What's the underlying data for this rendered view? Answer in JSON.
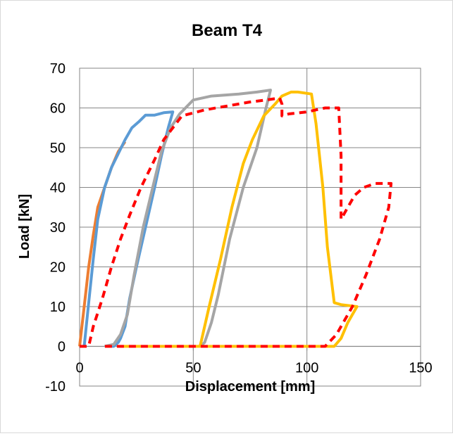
{
  "chart_data": {
    "type": "line",
    "title": "Beam T4",
    "xlabel": "Displacement [mm]",
    "ylabel": "Load [kN]",
    "xlim": [
      0,
      150
    ],
    "ylim": [
      -10,
      70
    ],
    "xticks": [
      "0",
      "50",
      "100",
      "150"
    ],
    "yticks": [
      "-10",
      "0",
      "10",
      "20",
      "30",
      "40",
      "50",
      "60",
      "70"
    ],
    "grid": true,
    "legend": "none",
    "series": [
      {
        "color": "#ED7D31",
        "dash": "solid",
        "points": [
          [
            0,
            0
          ],
          [
            2,
            10
          ],
          [
            4,
            20
          ],
          [
            6,
            28
          ],
          [
            8,
            35
          ],
          [
            11,
            40
          ],
          [
            14,
            45
          ],
          [
            17,
            49
          ],
          [
            20,
            51.5
          ]
        ]
      },
      {
        "color": "#5B9BD5",
        "dash": "solid",
        "points": [
          [
            0,
            0
          ],
          [
            2,
            0
          ],
          [
            4,
            11
          ],
          [
            6,
            22
          ],
          [
            8,
            32
          ],
          [
            11,
            40
          ],
          [
            14,
            45
          ],
          [
            17,
            48.5
          ],
          [
            20,
            52
          ],
          [
            23,
            55
          ],
          [
            26,
            56.5
          ],
          [
            29,
            58.2
          ],
          [
            33,
            58.2
          ],
          [
            37,
            58.8
          ],
          [
            41,
            59
          ],
          [
            39,
            55
          ],
          [
            36,
            48
          ],
          [
            33,
            40
          ],
          [
            29,
            30
          ],
          [
            25,
            20
          ],
          [
            22,
            12
          ],
          [
            20,
            5
          ],
          [
            18,
            2
          ],
          [
            17,
            1
          ],
          [
            15,
            0
          ],
          [
            12,
            0
          ]
        ]
      },
      {
        "color": "#A5A5A5",
        "dash": "solid",
        "points": [
          [
            11,
            0
          ],
          [
            15,
            0.5
          ],
          [
            18,
            3
          ],
          [
            21,
            8
          ],
          [
            24,
            18
          ],
          [
            28,
            30
          ],
          [
            33,
            42
          ],
          [
            36,
            49
          ],
          [
            40,
            55
          ],
          [
            44,
            58.5
          ],
          [
            50,
            62
          ],
          [
            58,
            63
          ],
          [
            70,
            63.5
          ],
          [
            78,
            64
          ],
          [
            84,
            64.5
          ],
          [
            82,
            60
          ],
          [
            78,
            50
          ],
          [
            72,
            40
          ],
          [
            66,
            27
          ],
          [
            61,
            13
          ],
          [
            58,
            6
          ],
          [
            55,
            1
          ],
          [
            53,
            0
          ],
          [
            50,
            0
          ]
        ]
      },
      {
        "color": "#FFC000",
        "dash": "solid",
        "points": [
          [
            18,
            0
          ],
          [
            35,
            0
          ],
          [
            53,
            0
          ],
          [
            57,
            10
          ],
          [
            62,
            22
          ],
          [
            67,
            35
          ],
          [
            72,
            46
          ],
          [
            76,
            52
          ],
          [
            81,
            58
          ],
          [
            86,
            61
          ],
          [
            89,
            63
          ],
          [
            93,
            64
          ],
          [
            96,
            64
          ],
          [
            102,
            63.5
          ],
          [
            104,
            56
          ],
          [
            107,
            40
          ],
          [
            109,
            25
          ],
          [
            112,
            11
          ],
          [
            115,
            10.5
          ],
          [
            122,
            10
          ],
          [
            118,
            6
          ],
          [
            115,
            2
          ],
          [
            112,
            0
          ],
          [
            85,
            0
          ],
          [
            53,
            0
          ]
        ]
      },
      {
        "color": "#FF0000",
        "dash": "dashed",
        "points": [
          [
            0,
            0
          ],
          [
            4,
            0
          ],
          [
            6,
            5
          ],
          [
            10,
            12
          ],
          [
            14,
            20
          ],
          [
            18,
            27
          ],
          [
            22,
            33
          ],
          [
            27,
            40
          ],
          [
            33,
            47
          ],
          [
            37,
            52
          ],
          [
            41,
            55
          ],
          [
            45,
            58
          ],
          [
            55,
            59.5
          ],
          [
            65,
            60.5
          ],
          [
            75,
            61.5
          ],
          [
            82,
            62
          ],
          [
            88,
            62.5
          ],
          [
            89,
            61
          ],
          [
            89,
            58
          ],
          [
            92,
            58.5
          ],
          [
            100,
            59
          ],
          [
            108,
            60
          ],
          [
            114,
            60
          ],
          [
            115,
            48
          ],
          [
            115,
            37
          ],
          [
            115,
            32
          ],
          [
            118,
            35
          ],
          [
            121,
            38
          ],
          [
            125,
            40
          ],
          [
            130,
            41
          ],
          [
            137,
            41
          ],
          [
            136,
            35
          ],
          [
            132,
            27
          ],
          [
            126,
            18
          ],
          [
            120,
            10
          ],
          [
            113,
            3
          ],
          [
            108,
            0
          ],
          [
            90,
            0
          ],
          [
            70,
            0
          ],
          [
            55,
            0
          ],
          [
            40,
            0
          ],
          [
            25,
            0
          ],
          [
            10,
            0
          ]
        ]
      }
    ]
  }
}
